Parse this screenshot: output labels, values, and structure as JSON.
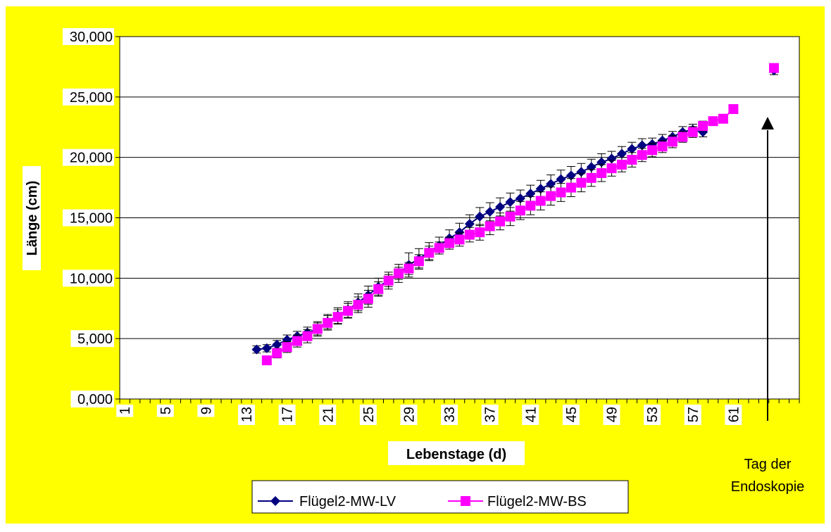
{
  "chart_data": {
    "type": "line",
    "xlabel": "Lebenstage (d)",
    "ylabel": "Länge (cm)",
    "ylim": [
      0,
      30
    ],
    "y_ticks": [
      "0,000",
      "5,000",
      "10,000",
      "15,000",
      "20,000",
      "25,000",
      "30,000"
    ],
    "x_tick_labels": [
      "1",
      "5",
      "9",
      "13",
      "17",
      "21",
      "25",
      "29",
      "33",
      "37",
      "41",
      "45",
      "49",
      "53",
      "57",
      "61"
    ],
    "x_categories_count": 67,
    "grid": "horizontal",
    "legend_position": "bottom",
    "annotation": "Tag der Endoskopie",
    "colors": {
      "background": "#ffff00",
      "lv": "#000080",
      "bs": "#ff00ff",
      "plot": "#ffffff"
    },
    "series": [
      {
        "name": "Flügel2-MW-LV",
        "marker": "diamond",
        "x": [
          14,
          15,
          16,
          17,
          18,
          19,
          20,
          21,
          22,
          23,
          24,
          25,
          26,
          27,
          28,
          29,
          30,
          31,
          32,
          33,
          34,
          35,
          36,
          37,
          38,
          39,
          40,
          41,
          42,
          43,
          44,
          45,
          46,
          47,
          48,
          49,
          50,
          51,
          52,
          53,
          54,
          55,
          56,
          57,
          58,
          65
        ],
        "values": [
          4.1,
          4.2,
          4.5,
          4.9,
          5.2,
          5.5,
          5.8,
          6.4,
          6.9,
          7.4,
          8.0,
          8.6,
          9.3,
          9.8,
          10.4,
          11.1,
          11.6,
          12.2,
          12.7,
          13.3,
          13.8,
          14.5,
          15.1,
          15.5,
          15.9,
          16.3,
          16.6,
          17.0,
          17.4,
          17.8,
          18.2,
          18.5,
          18.8,
          19.2,
          19.6,
          19.9,
          20.3,
          20.7,
          21.0,
          21.1,
          21.4,
          21.7,
          22.1,
          22.3,
          22.1,
          27.2
        ],
        "err": [
          0.3,
          0.3,
          0.35,
          0.4,
          0.4,
          0.45,
          0.5,
          0.6,
          0.65,
          0.65,
          0.7,
          0.75,
          0.7,
          0.7,
          0.75,
          1.0,
          0.85,
          0.75,
          0.7,
          0.7,
          0.75,
          0.75,
          0.75,
          0.75,
          0.75,
          0.75,
          0.7,
          0.7,
          0.7,
          0.75,
          0.75,
          0.75,
          0.7,
          0.65,
          0.7,
          0.6,
          0.6,
          0.55,
          0.55,
          0.5,
          0.5,
          0.45,
          0.45,
          0.45,
          0.4,
          0.35
        ]
      },
      {
        "name": "Flügel2-MW-BS",
        "marker": "square",
        "x": [
          15,
          16,
          17,
          18,
          19,
          20,
          21,
          22,
          23,
          24,
          25,
          26,
          27,
          28,
          29,
          30,
          31,
          32,
          33,
          34,
          35,
          36,
          37,
          38,
          39,
          40,
          41,
          42,
          43,
          44,
          45,
          46,
          47,
          48,
          49,
          50,
          51,
          52,
          53,
          54,
          55,
          56,
          57,
          58,
          59,
          60,
          61,
          65
        ],
        "values": [
          3.2,
          3.8,
          4.3,
          4.8,
          5.2,
          5.8,
          6.3,
          6.8,
          7.3,
          7.8,
          8.3,
          9.1,
          9.8,
          10.4,
          10.8,
          11.4,
          12.1,
          12.5,
          12.9,
          13.2,
          13.6,
          13.8,
          14.3,
          14.7,
          15.1,
          15.6,
          16.0,
          16.4,
          16.8,
          17.1,
          17.5,
          17.9,
          18.3,
          18.7,
          19.1,
          19.4,
          19.8,
          20.2,
          20.6,
          20.9,
          21.3,
          21.7,
          22.1,
          22.6,
          23.0,
          23.2,
          24.0,
          27.4
        ],
        "err": [
          0.1,
          0.4,
          0.45,
          0.5,
          0.55,
          0.6,
          0.6,
          0.6,
          0.6,
          0.65,
          0.7,
          0.6,
          0.5,
          0.5,
          0.5,
          0.55,
          0.55,
          0.5,
          0.5,
          0.55,
          0.6,
          0.65,
          0.7,
          0.7,
          0.75,
          0.75,
          0.75,
          0.75,
          0.75,
          0.75,
          0.75,
          0.75,
          0.7,
          0.7,
          0.65,
          0.6,
          0.6,
          0.55,
          0.55,
          0.5,
          0.5,
          0.45,
          0.45,
          0.4,
          0.3,
          0.3,
          0.2,
          0.3
        ]
      }
    ]
  }
}
